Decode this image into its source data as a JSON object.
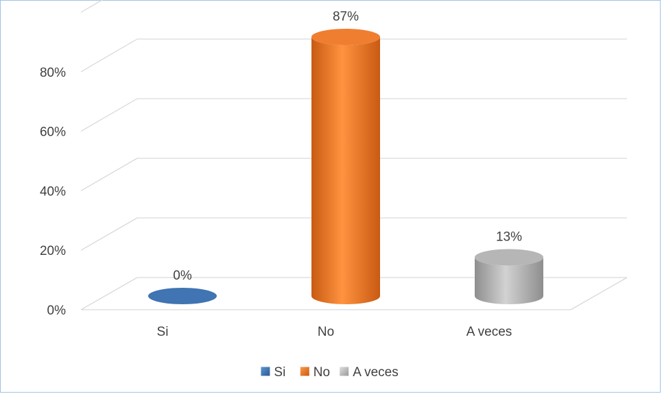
{
  "chart_data": {
    "type": "bar",
    "style": "3d-cylinder",
    "categories": [
      "Si",
      "No",
      "A veces"
    ],
    "values": [
      0,
      87,
      13
    ],
    "data_labels": [
      "0%",
      "87%",
      "13%"
    ],
    "colors": [
      "#3a70b0",
      "#f07a2a",
      "#b4b4b4"
    ],
    "legend": {
      "position": "bottom",
      "entries": [
        "Si",
        "No",
        "A veces"
      ]
    },
    "y_ticks": [
      "0%",
      "20%",
      "40%",
      "60%",
      "80%"
    ],
    "ylim": [
      0,
      100
    ],
    "grid": true,
    "title": "",
    "xlabel": "",
    "ylabel": ""
  }
}
